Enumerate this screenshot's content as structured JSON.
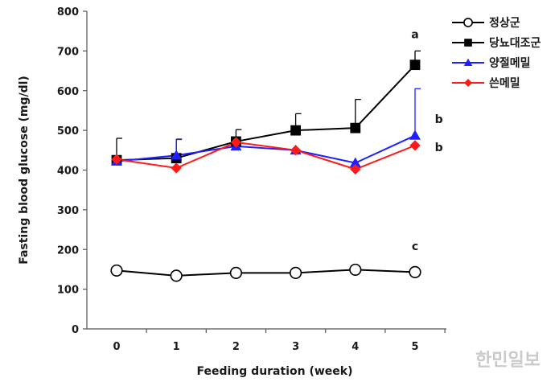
{
  "chart_data": {
    "type": "line",
    "xlabel": "Feeding duration (week)",
    "ylabel": "Fasting blood glucose (mg/dl)",
    "x": [
      0,
      1,
      2,
      3,
      4,
      5
    ],
    "x_tick_labels": [
      "0",
      "1",
      "2",
      "3",
      "4",
      "5"
    ],
    "ylim": [
      0,
      800
    ],
    "y_ticks": [
      0,
      100,
      200,
      300,
      400,
      500,
      600,
      700,
      800
    ],
    "y_tick_labels": [
      "0",
      "100",
      "200",
      "300",
      "400",
      "500",
      "600",
      "700",
      "800"
    ],
    "grid": false,
    "legend_position": "top-right",
    "series": [
      {
        "name": "정상군",
        "color": "#000000",
        "marker": "open-circle",
        "values": [
          147,
          134,
          141,
          141,
          149,
          143
        ],
        "error_upper": [
          0,
          0,
          0,
          0,
          0,
          0
        ]
      },
      {
        "name": "당뇨대조군",
        "color": "#000000",
        "marker": "filled-square",
        "values": [
          425,
          430,
          472,
          500,
          506,
          665
        ],
        "error_upper": [
          55,
          48,
          30,
          42,
          72,
          35
        ]
      },
      {
        "name": "양절메밀",
        "color": "#1f1fff",
        "marker": "filled-triangle",
        "values": [
          422,
          437,
          460,
          450,
          418,
          487
        ],
        "error_upper": [
          0,
          40,
          0,
          0,
          0,
          118
        ]
      },
      {
        "name": "쓴메밀",
        "color": "#ff1a1a",
        "marker": "filled-diamond",
        "values": [
          427,
          405,
          470,
          450,
          402,
          462
        ],
        "error_upper": [
          0,
          0,
          0,
          0,
          0,
          0
        ]
      }
    ],
    "annotations": [
      {
        "text": "a",
        "x": 5,
        "y": 732
      },
      {
        "text": "b",
        "x": 5.4,
        "y": 518
      },
      {
        "text": "b",
        "x": 5.4,
        "y": 448
      },
      {
        "text": "c",
        "x": 5,
        "y": 198
      }
    ]
  },
  "watermark": {
    "text": "한민일보",
    "color": "#bdbdbd"
  }
}
